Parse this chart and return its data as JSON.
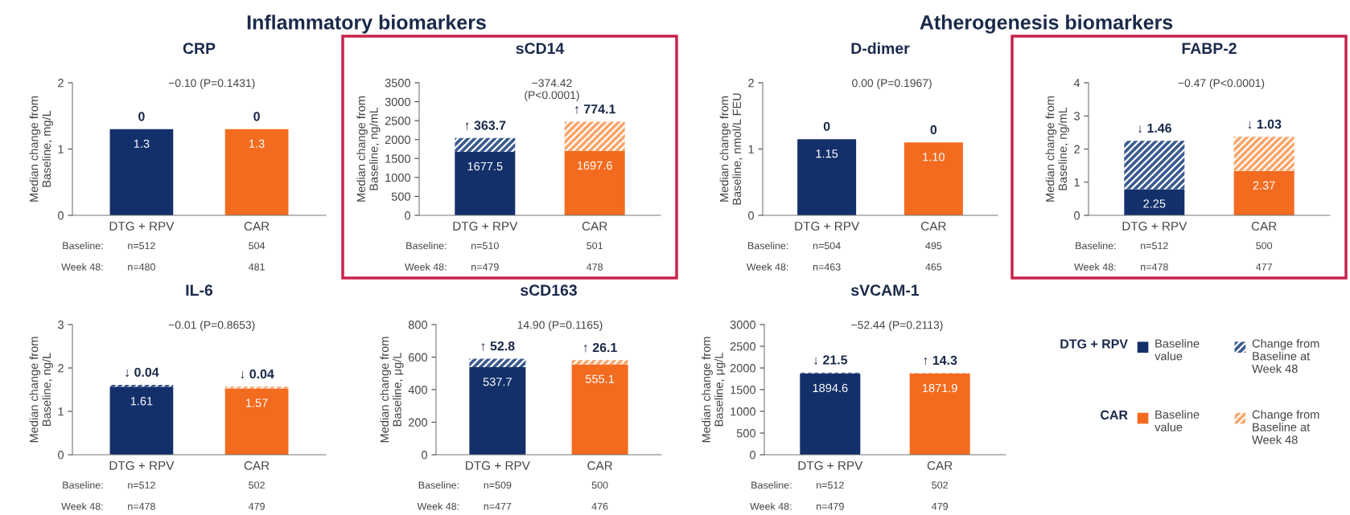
{
  "chart_data": [
    {
      "type": "bar",
      "stacked": true,
      "title": "CRP",
      "subtitle": "−0.10 (P=0.1431)",
      "ylabel": "Median change from\nBaseline, mg/L",
      "categories": [
        "DTG + RPV",
        "CAR"
      ],
      "ylim": [
        0,
        2
      ],
      "yticks": [
        0,
        1,
        2
      ],
      "series": [
        {
          "colors": [
            "#14306a",
            "#f36b1f"
          ],
          "values": [
            1.3,
            1.3
          ],
          "value_labels": [
            "1.3",
            "1.3"
          ]
        },
        {
          "colors": [
            "#3a5a90",
            "#f8a66c"
          ],
          "values": [
            0,
            0
          ],
          "value_labels": [
            "0",
            "0"
          ]
        }
      ],
      "annotations": [
        "Inflammatory biomarkers",
        "Baseline:",
        "n=512",
        "504",
        "Week 48:",
        "n=480",
        "481"
      ]
    },
    {
      "type": "bar",
      "stacked": true,
      "title": "sCD14",
      "subtitle": "−374.42\n(P<0.0001)",
      "ylabel": "Median change from\nBaseline, ng/mL",
      "categories": [
        "DTG + RPV",
        "CAR"
      ],
      "ylim": [
        0,
        3500
      ],
      "yticks": [
        0,
        500,
        1000,
        1500,
        2000,
        2500,
        3000,
        3500
      ],
      "series": [
        {
          "colors": [
            "#14306a",
            "#f36b1f"
          ],
          "values": [
            1677.5,
            1697.6
          ],
          "value_labels": [
            "1677.5",
            "1697.6"
          ]
        },
        {
          "colors": [
            "#3a5a90",
            "#f8a66c"
          ],
          "values": [
            363.7,
            774.1
          ],
          "value_labels": [
            "↑ 363.7",
            "↑ 774.1"
          ]
        }
      ],
      "annotations": [
        "Baseline:",
        "n=510",
        "501",
        "Week 48:",
        "n=479",
        "478"
      ]
    },
    {
      "type": "bar",
      "stacked": true,
      "title": "D-dimer",
      "subtitle": "0.00 (P=0.1967)",
      "ylabel": "Median change from\nBaseline, nmol/L FEU",
      "categories": [
        "DTG + RPV",
        "CAR"
      ],
      "ylim": [
        0,
        2
      ],
      "yticks": [
        0,
        1,
        2
      ],
      "series": [
        {
          "colors": [
            "#14306a",
            "#f36b1f"
          ],
          "values": [
            1.15,
            1.1
          ],
          "value_labels": [
            "1.15",
            "1.10"
          ]
        },
        {
          "colors": [
            "#3a5a90",
            "#f8a66c"
          ],
          "values": [
            0,
            0
          ],
          "value_labels": [
            "0",
            "0"
          ]
        }
      ],
      "annotations": [
        "Atherogenesis biomarkers",
        "Baseline:",
        "n=504",
        "495",
        "Week 48:",
        "n=463",
        "465"
      ]
    },
    {
      "type": "bar",
      "stacked": true,
      "title": "FABP-2",
      "subtitle": "−0.47 (P<0.0001)",
      "ylabel": "Median change from\nBaseline, ng/mL",
      "categories": [
        "DTG + RPV",
        "CAR"
      ],
      "ylim": [
        0,
        4
      ],
      "yticks": [
        0,
        1,
        2,
        3,
        4
      ],
      "series": [
        {
          "colors": [
            "#14306a",
            "#f36b1f"
          ],
          "values": [
            0.79,
            1.34
          ]
        },
        {
          "colors": [
            "#3a5a90",
            "#f8a66c"
          ],
          "values": [
            1.46,
            1.03
          ],
          "value_labels": [
            "↓ 1.46",
            "↓ 1.03"
          ]
        }
      ],
      "totals": [
        "2.25",
        "2.37"
      ],
      "annotations": [
        "Baseline:",
        "n=512",
        "500",
        "Week 48:",
        "n=478",
        "477"
      ]
    },
    {
      "type": "bar",
      "stacked": true,
      "title": "IL-6",
      "subtitle": "−0.01 (P=0.8653)",
      "ylabel": "Median change from\nBaseline, ng/L",
      "categories": [
        "DTG + RPV",
        "CAR"
      ],
      "ylim": [
        0,
        3
      ],
      "yticks": [
        0,
        1,
        2,
        3
      ],
      "series": [
        {
          "colors": [
            "#14306a",
            "#f36b1f"
          ],
          "values": [
            1.57,
            1.53
          ]
        },
        {
          "colors": [
            "#3a5a90",
            "#f8a66c"
          ],
          "values": [
            0.04,
            0.04
          ],
          "value_labels": [
            "↓ 0.04",
            "↓ 0.04"
          ]
        }
      ],
      "totals": [
        "1.61",
        "1.57"
      ],
      "annotations": [
        "Baseline:",
        "n=512",
        "502",
        "Week 48:",
        "n=478",
        "479"
      ]
    },
    {
      "type": "bar",
      "stacked": true,
      "title": "sCD163",
      "subtitle": "14.90 (P=0.1165)",
      "ylabel": "Median change from\nBaseline, μg/L",
      "categories": [
        "DTG + RPV",
        "CAR"
      ],
      "ylim": [
        0,
        800
      ],
      "yticks": [
        0,
        200,
        400,
        600,
        800
      ],
      "series": [
        {
          "colors": [
            "#14306a",
            "#f36b1f"
          ],
          "values": [
            537.7,
            555.1
          ],
          "value_labels": [
            "537.7",
            "555.1"
          ]
        },
        {
          "colors": [
            "#3a5a90",
            "#f8a66c"
          ],
          "values": [
            52.8,
            26.1
          ],
          "value_labels": [
            "↑ 52.8",
            "↑ 26.1"
          ]
        }
      ],
      "annotations": [
        "Baseline:",
        "n=509",
        "500",
        "Week 48:",
        "n=477",
        "476"
      ]
    },
    {
      "type": "bar",
      "stacked": true,
      "title": "sVCAM-1",
      "subtitle": "−52.44 (P=0.2113)",
      "ylabel": "Median change from\nBaseline, μg/L",
      "categories": [
        "DTG + RPV",
        "CAR"
      ],
      "ylim": [
        0,
        3000
      ],
      "yticks": [
        0,
        500,
        1000,
        1500,
        2000,
        2500,
        3000
      ],
      "series": [
        {
          "colors": [
            "#14306a",
            "#f36b1f"
          ],
          "values": [
            1873.1,
            1871.9
          ],
          "value_labels": [
            null,
            "1871.9"
          ]
        },
        {
          "colors": [
            "#3a5a90",
            "#f8a66c"
          ],
          "values": [
            21.5,
            14.3
          ],
          "value_labels": [
            "↓ 21.5",
            "↑ 14.3"
          ]
        }
      ],
      "totals": [
        "1894.6",
        null
      ],
      "annotations": [
        "Baseline:",
        "n=512",
        "502",
        "Week 48:",
        "n=479",
        "479"
      ]
    },
    {
      "type": "other",
      "annotations": [
        "DTG + RPV",
        "Baseline\nvalue",
        "Change from\nBaseline at\nWeek 48",
        "CAR",
        "Baseline\nvalue",
        "Change from\nBaseline at\nWeek 48"
      ]
    }
  ]
}
